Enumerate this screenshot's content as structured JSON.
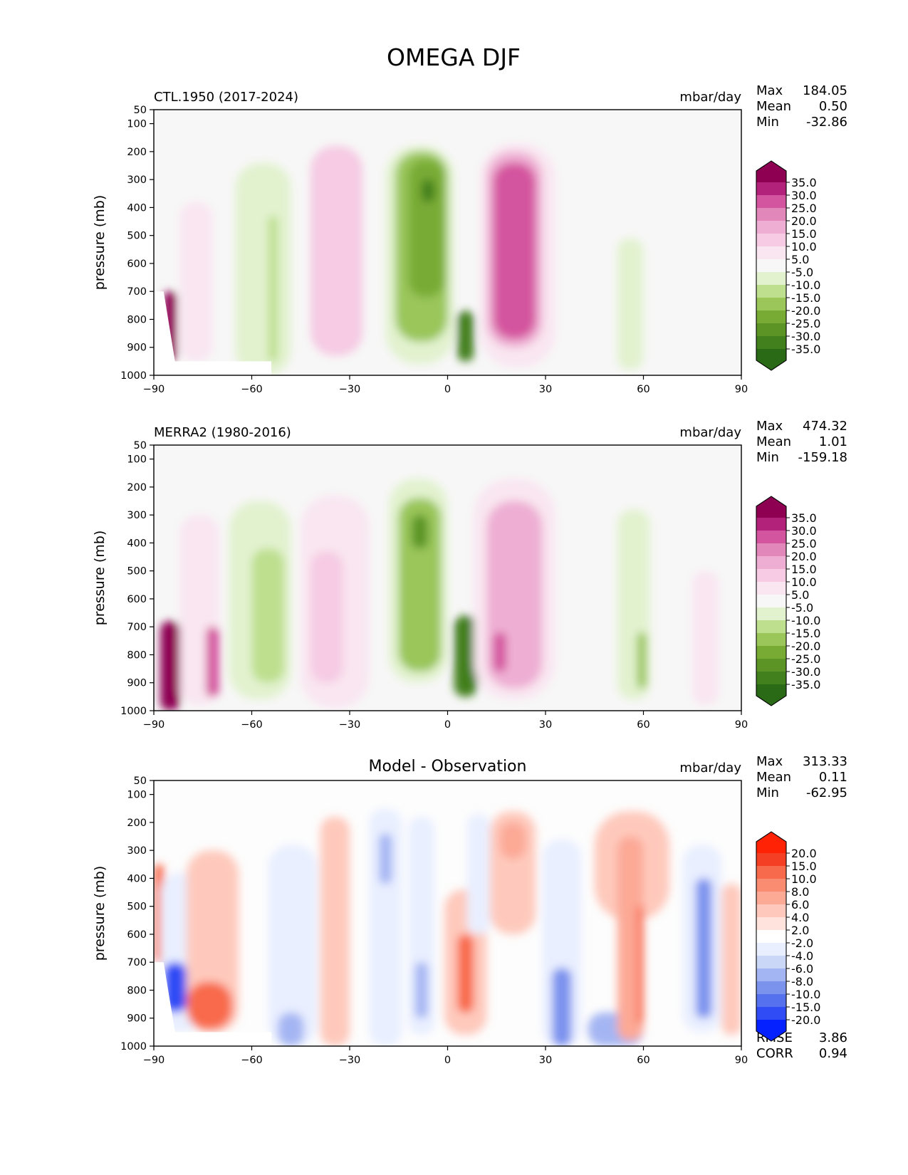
{
  "figure_title": "OMEGA DJF",
  "chart_data": [
    {
      "type": "heatmap",
      "title": "CTL.1950 (2017-2024)",
      "units": "mbar/day",
      "xlabel": "",
      "ylabel": "pressure (mb)",
      "xlim": [
        -90,
        90
      ],
      "ylim": [
        1000,
        50
      ],
      "xticks": [
        "−90",
        "−60",
        "−30",
        "0",
        "30",
        "60",
        "90"
      ],
      "yticks": [
        "50",
        "100",
        "200",
        "300",
        "400",
        "500",
        "600",
        "700",
        "800",
        "900",
        "1000"
      ],
      "stats": {
        "max_label": "Max",
        "max": "184.05",
        "mean_label": "Mean",
        "mean": "0.50",
        "min_label": "Min",
        "min": "-32.86"
      },
      "colorbar_labels": [
        "35.0",
        "30.0",
        "25.0",
        "20.0",
        "15.0",
        "10.0",
        "5.0",
        "-5.0",
        "-10.0",
        "-15.0",
        "-20.0",
        "-25.0",
        "-30.0",
        "-35.0"
      ],
      "features": [
        {
          "lat": [
            -87,
            -83
          ],
          "p": [
            700,
            950
          ],
          "v": 38
        },
        {
          "lat": [
            -82,
            -72
          ],
          "p": [
            380,
            950
          ],
          "v": 6
        },
        {
          "lat": [
            -65,
            -48
          ],
          "p": [
            240,
            1000
          ],
          "v": -8
        },
        {
          "lat": [
            -55,
            -52
          ],
          "p": [
            430,
            950
          ],
          "v": -12
        },
        {
          "lat": [
            -42,
            -26
          ],
          "p": [
            180,
            930
          ],
          "v": 10
        },
        {
          "lat": [
            -19,
            2
          ],
          "p": [
            180,
            960
          ],
          "v": -10
        },
        {
          "lat": [
            -16,
            0
          ],
          "p": [
            200,
            880
          ],
          "v": -18
        },
        {
          "lat": [
            -12,
            -1
          ],
          "p": [
            230,
            720
          ],
          "v": -25
        },
        {
          "lat": [
            -8,
            -4
          ],
          "p": [
            300,
            380
          ],
          "v": -35
        },
        {
          "lat": [
            3,
            8
          ],
          "p": [
            770,
            950
          ],
          "v": -35
        },
        {
          "lat": [
            10,
            33
          ],
          "p": [
            170,
            970
          ],
          "v": 8
        },
        {
          "lat": [
            12,
            29
          ],
          "p": [
            200,
            900
          ],
          "v": 17
        },
        {
          "lat": [
            14,
            27
          ],
          "p": [
            240,
            870
          ],
          "v": 27
        },
        {
          "lat": [
            52,
            60
          ],
          "p": [
            510,
            980
          ],
          "v": -8
        }
      ]
    },
    {
      "type": "heatmap",
      "title": "MERRA2 (1980-2016)",
      "units": "mbar/day",
      "xlabel": "",
      "ylabel": "pressure (mb)",
      "xlim": [
        -90,
        90
      ],
      "ylim": [
        1000,
        50
      ],
      "xticks": [
        "−90",
        "−60",
        "−30",
        "0",
        "30",
        "60",
        "90"
      ],
      "yticks": [
        "50",
        "100",
        "200",
        "300",
        "400",
        "500",
        "600",
        "700",
        "800",
        "900",
        "1000"
      ],
      "stats": {
        "max_label": "Max",
        "max": "474.32",
        "mean_label": "Mean",
        "mean": "1.01",
        "min_label": "Min",
        "min": "-159.18"
      },
      "colorbar_labels": [
        "35.0",
        "30.0",
        "25.0",
        "20.0",
        "15.0",
        "10.0",
        "5.0",
        "-5.0",
        "-10.0",
        "-15.0",
        "-20.0",
        "-25.0",
        "-30.0",
        "-35.0"
      ],
      "features": [
        {
          "lat": [
            -88,
            -82
          ],
          "p": [
            680,
            1000
          ],
          "v": 40
        },
        {
          "lat": [
            -82,
            -70
          ],
          "p": [
            300,
            980
          ],
          "v": 8
        },
        {
          "lat": [
            -74,
            -70
          ],
          "p": [
            700,
            950
          ],
          "v": 28
        },
        {
          "lat": [
            -67,
            -48
          ],
          "p": [
            250,
            960
          ],
          "v": -8
        },
        {
          "lat": [
            -60,
            -50
          ],
          "p": [
            420,
            900
          ],
          "v": -12
        },
        {
          "lat": [
            -45,
            -24
          ],
          "p": [
            230,
            990
          ],
          "v": 7
        },
        {
          "lat": [
            -42,
            -32
          ],
          "p": [
            430,
            900
          ],
          "v": 10
        },
        {
          "lat": [
            -18,
            0
          ],
          "p": [
            170,
            900
          ],
          "v": -9
        },
        {
          "lat": [
            -15,
            -2
          ],
          "p": [
            240,
            860
          ],
          "v": -18
        },
        {
          "lat": [
            -11,
            -6
          ],
          "p": [
            300,
            420
          ],
          "v": -26
        },
        {
          "lat": [
            2,
            9
          ],
          "p": [
            660,
            950
          ],
          "v": -33
        },
        {
          "lat": [
            8,
            33
          ],
          "p": [
            170,
            960
          ],
          "v": 9
        },
        {
          "lat": [
            12,
            29
          ],
          "p": [
            250,
            920
          ],
          "v": 19
        },
        {
          "lat": [
            14,
            18
          ],
          "p": [
            720,
            860
          ],
          "v": 29
        },
        {
          "lat": [
            52,
            62
          ],
          "p": [
            280,
            960
          ],
          "v": -7
        },
        {
          "lat": [
            58,
            61
          ],
          "p": [
            720,
            920
          ],
          "v": -16
        },
        {
          "lat": [
            75,
            83
          ],
          "p": [
            500,
            980
          ],
          "v": 8
        }
      ]
    },
    {
      "type": "heatmap",
      "title": "Model - Observation",
      "units": "mbar/day",
      "xlabel": "",
      "ylabel": "pressure (mb)",
      "xlim": [
        -90,
        90
      ],
      "ylim": [
        1000,
        50
      ],
      "xticks": [
        "−90",
        "−60",
        "−30",
        "0",
        "30",
        "60",
        "90"
      ],
      "yticks": [
        "50",
        "100",
        "200",
        "300",
        "400",
        "500",
        "600",
        "700",
        "800",
        "900",
        "1000"
      ],
      "stats": {
        "max_label": "Max",
        "max": "313.33",
        "mean_label": "Mean",
        "mean": "0.11",
        "min_label": "Min",
        "min": "-62.95",
        "rmse_label": "RMSE",
        "rmse": "3.86",
        "corr_label": "CORR",
        "corr": "0.94"
      },
      "colorbar_labels": [
        "20.0",
        "15.0",
        "10.0",
        "8.0",
        "6.0",
        "4.0",
        "2.0",
        "-2.0",
        "-4.0",
        "-6.0",
        "-8.0",
        "-10.0",
        "-15.0",
        "-20.0"
      ],
      "features": [
        {
          "lat": [
            -90,
            -87
          ],
          "p": [
            350,
            700
          ],
          "v": 10
        },
        {
          "lat": [
            -88,
            -75
          ],
          "p": [
            380,
            950
          ],
          "v": -3
        },
        {
          "lat": [
            -87,
            -80
          ],
          "p": [
            700,
            880
          ],
          "v": -16
        },
        {
          "lat": [
            -80,
            -64
          ],
          "p": [
            300,
            950
          ],
          "v": 5
        },
        {
          "lat": [
            -80,
            -66
          ],
          "p": [
            770,
            940
          ],
          "v": 14
        },
        {
          "lat": [
            -55,
            -40
          ],
          "p": [
            280,
            1000
          ],
          "v": -3
        },
        {
          "lat": [
            -52,
            -44
          ],
          "p": [
            880,
            1000
          ],
          "v": -8
        },
        {
          "lat": [
            -39,
            -30
          ],
          "p": [
            180,
            1000
          ],
          "v": 4
        },
        {
          "lat": [
            -24,
            -14
          ],
          "p": [
            150,
            1000
          ],
          "v": -4
        },
        {
          "lat": [
            -21,
            -17
          ],
          "p": [
            240,
            420
          ],
          "v": -8
        },
        {
          "lat": [
            -12,
            -4
          ],
          "p": [
            180,
            960
          ],
          "v": -4
        },
        {
          "lat": [
            -10,
            -6
          ],
          "p": [
            700,
            900
          ],
          "v": -8
        },
        {
          "lat": [
            -1,
            12
          ],
          "p": [
            440,
            960
          ],
          "v": 5
        },
        {
          "lat": [
            3,
            8
          ],
          "p": [
            600,
            880
          ],
          "v": 12
        },
        {
          "lat": [
            6,
            13
          ],
          "p": [
            170,
            600
          ],
          "v": -2.5
        },
        {
          "lat": [
            13,
            27
          ],
          "p": [
            160,
            600
          ],
          "v": 4
        },
        {
          "lat": [
            16,
            24
          ],
          "p": [
            200,
            330
          ],
          "v": 6
        },
        {
          "lat": [
            29,
            41
          ],
          "p": [
            260,
            1000
          ],
          "v": -4
        },
        {
          "lat": [
            32,
            38
          ],
          "p": [
            720,
            1000
          ],
          "v": -10
        },
        {
          "lat": [
            43,
            60
          ],
          "p": [
            880,
            1000
          ],
          "v": -7
        },
        {
          "lat": [
            45,
            68
          ],
          "p": [
            160,
            550
          ],
          "v": 4
        },
        {
          "lat": [
            52,
            60
          ],
          "p": [
            250,
            980
          ],
          "v": 6
        },
        {
          "lat": [
            58,
            60
          ],
          "p": [
            500,
            920
          ],
          "v": 12
        },
        {
          "lat": [
            72,
            84
          ],
          "p": [
            280,
            950
          ],
          "v": -4
        },
        {
          "lat": [
            76,
            81
          ],
          "p": [
            400,
            900
          ],
          "v": -9
        },
        {
          "lat": [
            84,
            90
          ],
          "p": [
            420,
            960
          ],
          "v": 5
        }
      ]
    }
  ],
  "colors": {
    "omega_scale": [
      "#2a6a17",
      "#427f1d",
      "#5c9525",
      "#78ab34",
      "#9ac65a",
      "#bedf8e",
      "#e2f2cf",
      "#f7f7f7",
      "#f9e6f0",
      "#f6cbe3",
      "#eeaed3",
      "#e287b9",
      "#d4559f",
      "#b3227a",
      "#8e0152"
    ],
    "diff_scale": [
      "#0521ff",
      "#2f4cf5",
      "#5671ee",
      "#7c93ee",
      "#a4b5f3",
      "#cad7f7",
      "#e9efff",
      "#ffffff",
      "#ffe3dc",
      "#fec9bc",
      "#fca996",
      "#fa8c72",
      "#f86a4c",
      "#f43f24",
      "#ff2205"
    ],
    "background": "#f7f7f7",
    "missing": "#ffffff"
  }
}
